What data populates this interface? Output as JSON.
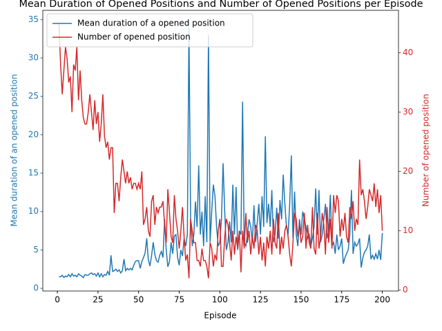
{
  "chart_data": {
    "type": "line",
    "title": "Mean Duration of Opened Positions and Number of Opened Positions per Episode",
    "x_label": "Episode",
    "y_label": "Mean duration of an opened position",
    "y2_label": "Number of opened position",
    "x": [
      1,
      2,
      3,
      4,
      5,
      6,
      7,
      8,
      9,
      10,
      11,
      12,
      13,
      14,
      15,
      16,
      17,
      18,
      19,
      20,
      21,
      22,
      23,
      24,
      25,
      26,
      27,
      28,
      29,
      30,
      31,
      32,
      33,
      34,
      35,
      36,
      37,
      38,
      39,
      40,
      41,
      42,
      43,
      44,
      45,
      46,
      47,
      48,
      49,
      50,
      51,
      52,
      53,
      54,
      55,
      56,
      57,
      58,
      59,
      60,
      61,
      62,
      63,
      64,
      65,
      66,
      67,
      68,
      69,
      70,
      71,
      72,
      73,
      74,
      75,
      76,
      77,
      78,
      79,
      80,
      81,
      82,
      83,
      84,
      85,
      86,
      87,
      88,
      89,
      90,
      91,
      92,
      93,
      94,
      95,
      96,
      97,
      98,
      99,
      100,
      101,
      102,
      103,
      104,
      105,
      106,
      107,
      108,
      109,
      110,
      111,
      112,
      113,
      114,
      115,
      116,
      117,
      118,
      119,
      120,
      121,
      122,
      123,
      124,
      125,
      126,
      127,
      128,
      129,
      130,
      131,
      132,
      133,
      134,
      135,
      136,
      137,
      138,
      139,
      140,
      141,
      142,
      143,
      144,
      145,
      146,
      147,
      148,
      149,
      150,
      151,
      152,
      153,
      154,
      155,
      156,
      157,
      158,
      159,
      160,
      161,
      162,
      163,
      164,
      165,
      166,
      167,
      168,
      169,
      170,
      171,
      172,
      173,
      174,
      175,
      176,
      177,
      178,
      179,
      180,
      181,
      182,
      183,
      184,
      185,
      186,
      187,
      188,
      189,
      190,
      191,
      192,
      193,
      194,
      195,
      196,
      197,
      198,
      199,
      200
    ],
    "series": [
      {
        "name": "Mean duration of a opened position",
        "color": "#1f77b4",
        "axis": "y",
        "values": [
          1.5,
          1.5,
          1.7,
          1.4,
          1.6,
          1.5,
          1.8,
          1.5,
          1.9,
          1.6,
          1.7,
          1.5,
          1.9,
          1.7,
          1.6,
          1.4,
          1.8,
          1.7,
          1.7,
          1.9,
          2.0,
          1.8,
          1.9,
          1.6,
          2.0,
          1.5,
          1.9,
          1.5,
          1.8,
          1.7,
          2.2,
          1.7,
          4.3,
          2.2,
          2.3,
          2.5,
          2.2,
          2.4,
          2.0,
          2.3,
          3.8,
          2.3,
          2.6,
          2.4,
          2.6,
          2.4,
          3.0,
          3.5,
          3.6,
          3.6,
          2.6,
          3.5,
          4.0,
          4.6,
          6.5,
          3.7,
          2.9,
          4.3,
          6.0,
          4.4,
          3.6,
          3.4,
          4.3,
          4.8,
          4.0,
          9.0,
          5.0,
          2.8,
          3.5,
          6.0,
          4.5,
          6.8,
          7.0,
          4.0,
          3.0,
          5.0,
          4.2,
          6.5,
          5.5,
          7.0,
          34.0,
          9.0,
          5.5,
          7.0,
          11.3,
          8.0,
          16.0,
          7.0,
          10.0,
          5.5,
          12.0,
          6.0,
          33.0,
          6.0,
          10.0,
          13.5,
          12.0,
          8.0,
          5.5,
          6.0,
          9.0,
          16.3,
          10.0,
          5.0,
          6.0,
          8.7,
          6.0,
          13.5,
          7.0,
          13.2,
          5.0,
          7.5,
          7.0,
          24.3,
          6.0,
          5.5,
          7.0,
          9.0,
          8.0,
          6.0,
          10.8,
          6.0,
          8.5,
          11.0,
          7.0,
          12.0,
          8.0,
          19.8,
          8.5,
          11.0,
          8.0,
          12.8,
          6.0,
          7.0,
          10.5,
          6.5,
          11.5,
          9.0,
          14.8,
          11.0,
          8.0,
          7.0,
          11.0,
          17.3,
          6.5,
          12.6,
          7.0,
          5.5,
          9.0,
          7.0,
          10.0,
          9.0,
          8.0,
          6.5,
          7.0,
          5.5,
          6.5,
          8.0,
          13.0,
          7.0,
          12.8,
          6.0,
          7.0,
          9.0,
          11.0,
          6.5,
          7.5,
          12.2,
          5.5,
          6.0,
          4.5,
          7.0,
          5.0,
          5.5,
          6.5,
          3.2,
          4.0,
          4.5,
          5.0,
          7.0,
          12.8,
          4.5,
          6.0,
          5.5,
          5.8,
          6.5,
          2.7,
          4.0,
          4.7,
          5.0,
          5.5,
          7.0,
          3.8,
          4.3,
          3.8,
          4.5,
          3.8,
          5.0,
          3.7,
          7.2
        ]
      },
      {
        "name": "Number of opened position",
        "color": "#d62728",
        "axis": "y2",
        "values": [
          45,
          38,
          33,
          37,
          41,
          39,
          35,
          36,
          30,
          38,
          37,
          41,
          32,
          37,
          32,
          29,
          28,
          28,
          30,
          33,
          30,
          27,
          32,
          28,
          30,
          25,
          28,
          33,
          26,
          24,
          25,
          22,
          24,
          24,
          13,
          18,
          18,
          15,
          19,
          22,
          20,
          18,
          20,
          18,
          19,
          17,
          18,
          18,
          17,
          18,
          17,
          20,
          11,
          12,
          14,
          10,
          9,
          15,
          16,
          11,
          14,
          13,
          14,
          14,
          15,
          11,
          8,
          17,
          13,
          9,
          8,
          16,
          12,
          10,
          7,
          10,
          14,
          9,
          5,
          6,
          2,
          12,
          10,
          8,
          8,
          5,
          5,
          4,
          7,
          5,
          5,
          4,
          2,
          8,
          7,
          4,
          6,
          5,
          10,
          12,
          4,
          4,
          9,
          12,
          11,
          8,
          5,
          10,
          6,
          9,
          7,
          10,
          3,
          10,
          7,
          13,
          8,
          10,
          6,
          9,
          7,
          11,
          10,
          6,
          9,
          5,
          8,
          4,
          9,
          7,
          10,
          6,
          12,
          8,
          7,
          13,
          6,
          9,
          7,
          10,
          11,
          9,
          6,
          4,
          8,
          13,
          12,
          9,
          11,
          8,
          9,
          13,
          7,
          11,
          8,
          7,
          14,
          7,
          6,
          13,
          7,
          9,
          13,
          11,
          6,
          14,
          8,
          12,
          7,
          16,
          13,
          16,
          15,
          9,
          12,
          10,
          13,
          9,
          8,
          14,
          12,
          15,
          10,
          12,
          11,
          22,
          16,
          17,
          15,
          12,
          14,
          17,
          16,
          15,
          18,
          14,
          17,
          13,
          16,
          10
        ]
      }
    ],
    "xlim": [
      -8.95,
      209.95
    ],
    "xticks": [
      0,
      25,
      50,
      75,
      100,
      125,
      150,
      175,
      200
    ],
    "ylim": [
      -0.35,
      36.2
    ],
    "yticks": [
      0,
      5,
      10,
      15,
      20,
      25,
      30,
      35
    ],
    "y2lim": [
      -0.15,
      47.15
    ],
    "y2ticks": [
      0,
      10,
      20,
      30,
      40
    ],
    "legend": "upper left"
  }
}
